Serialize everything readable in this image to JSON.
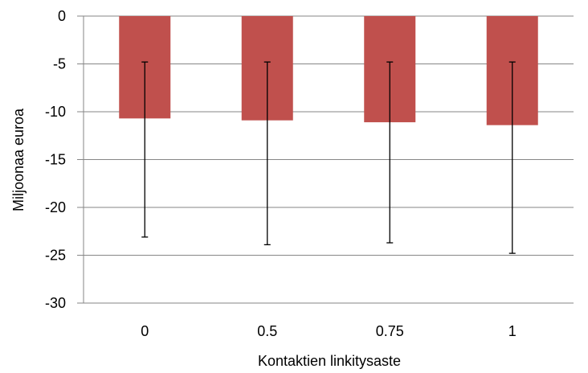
{
  "chart_data": {
    "type": "bar",
    "title": "",
    "xlabel": "Kontaktien linkitysaste",
    "ylabel": "Miljoonaa euroa",
    "categories": [
      "0",
      "0.5",
      "0.75",
      "1"
    ],
    "values": [
      -10.7,
      -10.9,
      -11.1,
      -11.4
    ],
    "error_bars": [
      {
        "low": -23.1,
        "high": -4.8
      },
      {
        "low": -23.9,
        "high": -4.8
      },
      {
        "low": -23.7,
        "high": -4.8
      },
      {
        "low": -24.8,
        "high": -4.8
      }
    ],
    "ylim": [
      -30,
      0
    ],
    "yticks": [
      0,
      -5,
      -10,
      -15,
      -20,
      -25,
      -30
    ],
    "ytick_labels": [
      "0",
      "-5",
      "-10",
      "-15",
      "-20",
      "-25",
      "-30"
    ],
    "grid": true,
    "legend": "none",
    "colors": {
      "bar": "#C0504D",
      "grid": "#868686",
      "error": "#000000"
    }
  }
}
